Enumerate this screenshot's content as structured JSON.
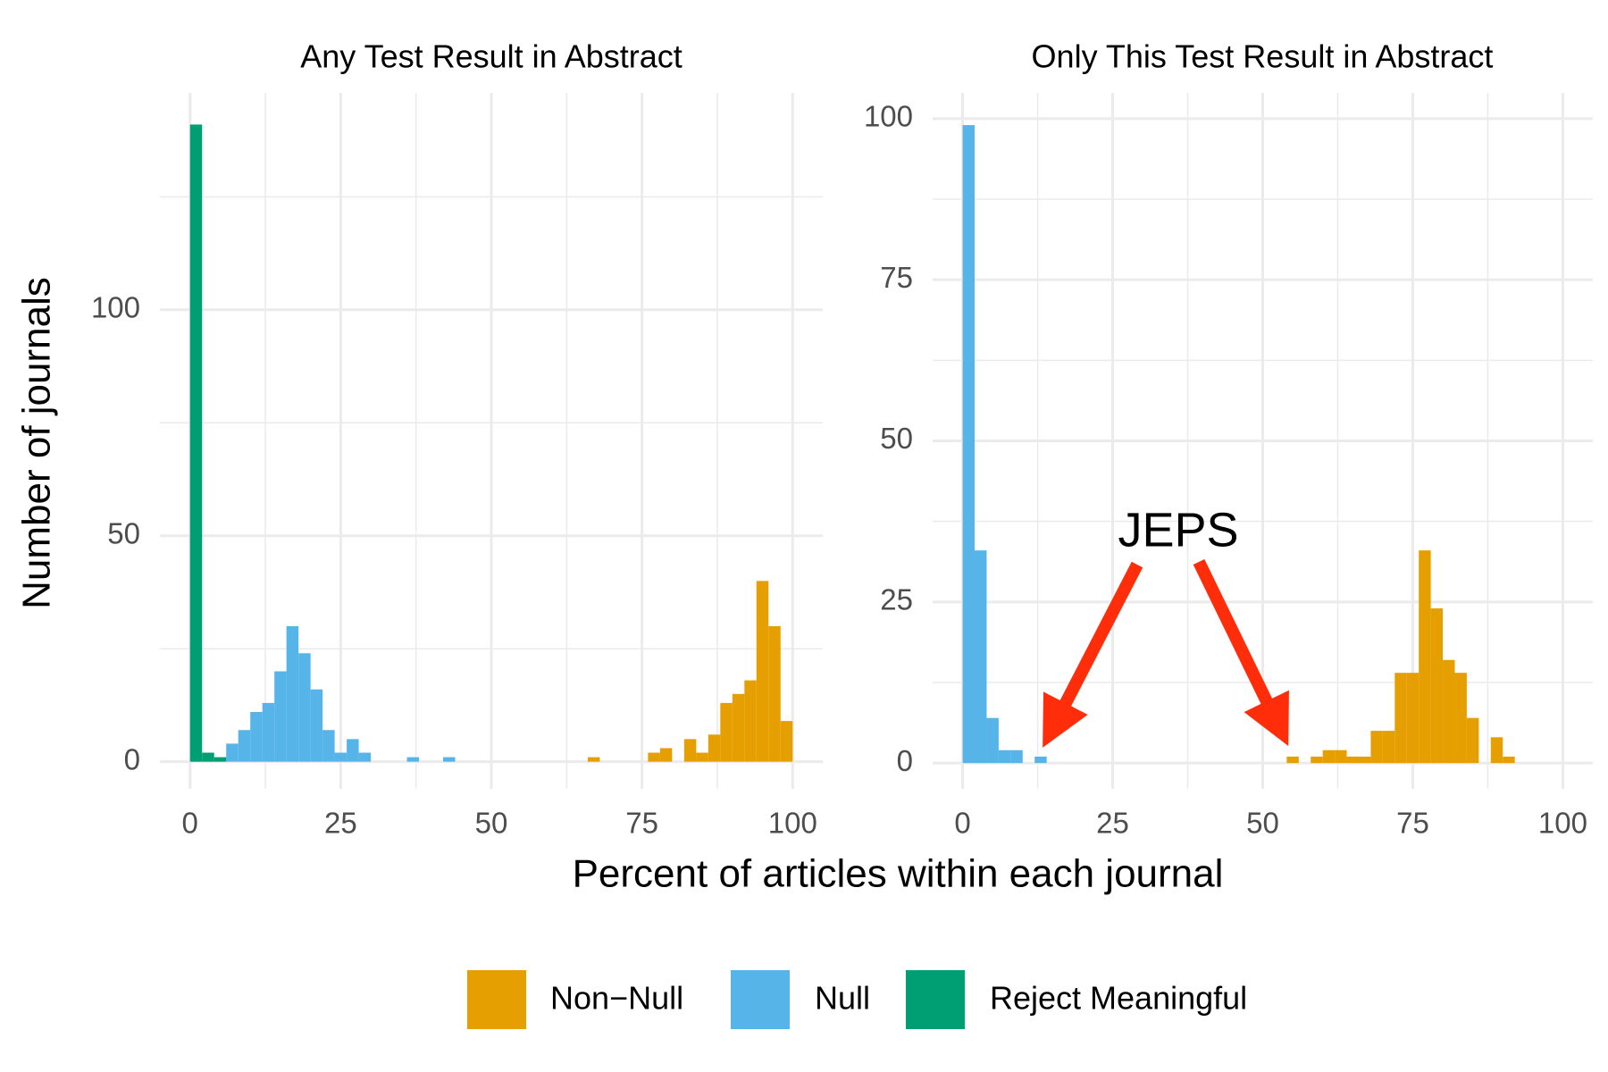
{
  "chart_data": [
    {
      "type": "histogram",
      "title": "Any Test Result in Abstract",
      "ylabel": "Number of journals",
      "xlabel": "Percent of articles within each journal",
      "bins": [
        0,
        2,
        4,
        6,
        8,
        10,
        12,
        14,
        16,
        18,
        20,
        22,
        24,
        26,
        28,
        30,
        32,
        34,
        36,
        38,
        40,
        42,
        44,
        46,
        48,
        50,
        52,
        54,
        56,
        58,
        60,
        62,
        64,
        66,
        68,
        70,
        72,
        74,
        76,
        78,
        80,
        82,
        84,
        86,
        88,
        90,
        92,
        94,
        96,
        98,
        100
      ],
      "series": [
        {
          "name": "Non−Null",
          "color": "#E69F00",
          "values": [
            0,
            0,
            0,
            0,
            0,
            0,
            0,
            0,
            0,
            0,
            0,
            0,
            0,
            0,
            0,
            0,
            0,
            0,
            0,
            0,
            0,
            0,
            0,
            0,
            0,
            0,
            0,
            0,
            0,
            0,
            0,
            0,
            0,
            1,
            0,
            0,
            0,
            0,
            2,
            3,
            0,
            5,
            2,
            6,
            13,
            15,
            18,
            40,
            30,
            9
          ]
        },
        {
          "name": "Null",
          "color": "#56B4E9",
          "values": [
            0,
            0,
            0,
            4,
            7,
            11,
            13,
            20,
            30,
            24,
            16,
            7,
            2,
            5,
            2,
            0,
            0,
            0,
            1,
            0,
            0,
            1,
            0,
            0,
            0,
            0,
            0,
            0,
            0,
            0,
            0,
            0,
            0,
            0,
            0,
            0,
            0,
            0,
            0,
            0,
            0,
            0,
            0,
            0,
            0,
            0,
            0,
            0,
            0,
            0
          ]
        },
        {
          "name": "Reject Meaningful",
          "color": "#009E73",
          "values": [
            141,
            2,
            1,
            0,
            0,
            0,
            0,
            0,
            0,
            0,
            0,
            0,
            0,
            0,
            0,
            0,
            0,
            0,
            0,
            0,
            0,
            0,
            0,
            0,
            0,
            0,
            0,
            0,
            0,
            0,
            0,
            0,
            0,
            0,
            0,
            0,
            0,
            0,
            0,
            0,
            0,
            0,
            0,
            0,
            0,
            0,
            0,
            0,
            0,
            0
          ]
        }
      ],
      "xlim": [
        -5,
        105
      ],
      "ylim": [
        -6,
        148
      ],
      "xticks": [
        0,
        25,
        50,
        75,
        100
      ],
      "yticks": [
        0,
        50,
        100
      ],
      "xminorticks": [
        12.5,
        37.5,
        62.5,
        87.5
      ],
      "yminorticks": [
        25,
        75,
        125
      ],
      "grid": true,
      "legend": "bottom"
    },
    {
      "type": "histogram",
      "title": "Only This Test Result in Abstract",
      "bins": [
        0,
        2,
        4,
        6,
        8,
        10,
        12,
        14,
        16,
        18,
        20,
        22,
        24,
        26,
        28,
        30,
        32,
        34,
        36,
        38,
        40,
        42,
        44,
        46,
        48,
        50,
        52,
        54,
        56,
        58,
        60,
        62,
        64,
        66,
        68,
        70,
        72,
        74,
        76,
        78,
        80,
        82,
        84,
        86,
        88,
        90,
        92,
        94,
        96,
        98,
        100
      ],
      "series": [
        {
          "name": "Non−Null",
          "color": "#E69F00",
          "values": [
            0,
            0,
            0,
            0,
            0,
            0,
            0,
            0,
            0,
            0,
            0,
            0,
            0,
            0,
            0,
            0,
            0,
            0,
            0,
            0,
            0,
            0,
            0,
            0,
            0,
            0,
            0,
            1,
            0,
            1,
            2,
            2,
            1,
            1,
            5,
            5,
            14,
            14,
            33,
            24,
            16,
            14,
            7,
            0,
            4,
            1,
            0,
            0,
            0,
            0
          ]
        },
        {
          "name": "Null",
          "color": "#56B4E9",
          "values": [
            99,
            33,
            7,
            2,
            2,
            0,
            1,
            0,
            0,
            0,
            0,
            0,
            0,
            0,
            0,
            0,
            0,
            0,
            0,
            0,
            0,
            0,
            0,
            0,
            0,
            0,
            0,
            0,
            0,
            0,
            0,
            0,
            0,
            0,
            0,
            0,
            0,
            0,
            0,
            0,
            0,
            0,
            0,
            0,
            0,
            0,
            0,
            0,
            0,
            0
          ]
        }
      ],
      "xlim": [
        -5,
        105
      ],
      "ylim": [
        -4,
        104
      ],
      "xticks": [
        0,
        25,
        50,
        75,
        100
      ],
      "yticks": [
        0,
        25,
        50,
        75,
        100
      ],
      "xminorticks": [
        12.5,
        37.5,
        62.5,
        87.5
      ],
      "yminorticks": [
        12.5,
        37.5,
        62.5,
        87.5
      ],
      "grid": true,
      "annotations": [
        {
          "text": "JEPS"
        }
      ]
    }
  ]
}
